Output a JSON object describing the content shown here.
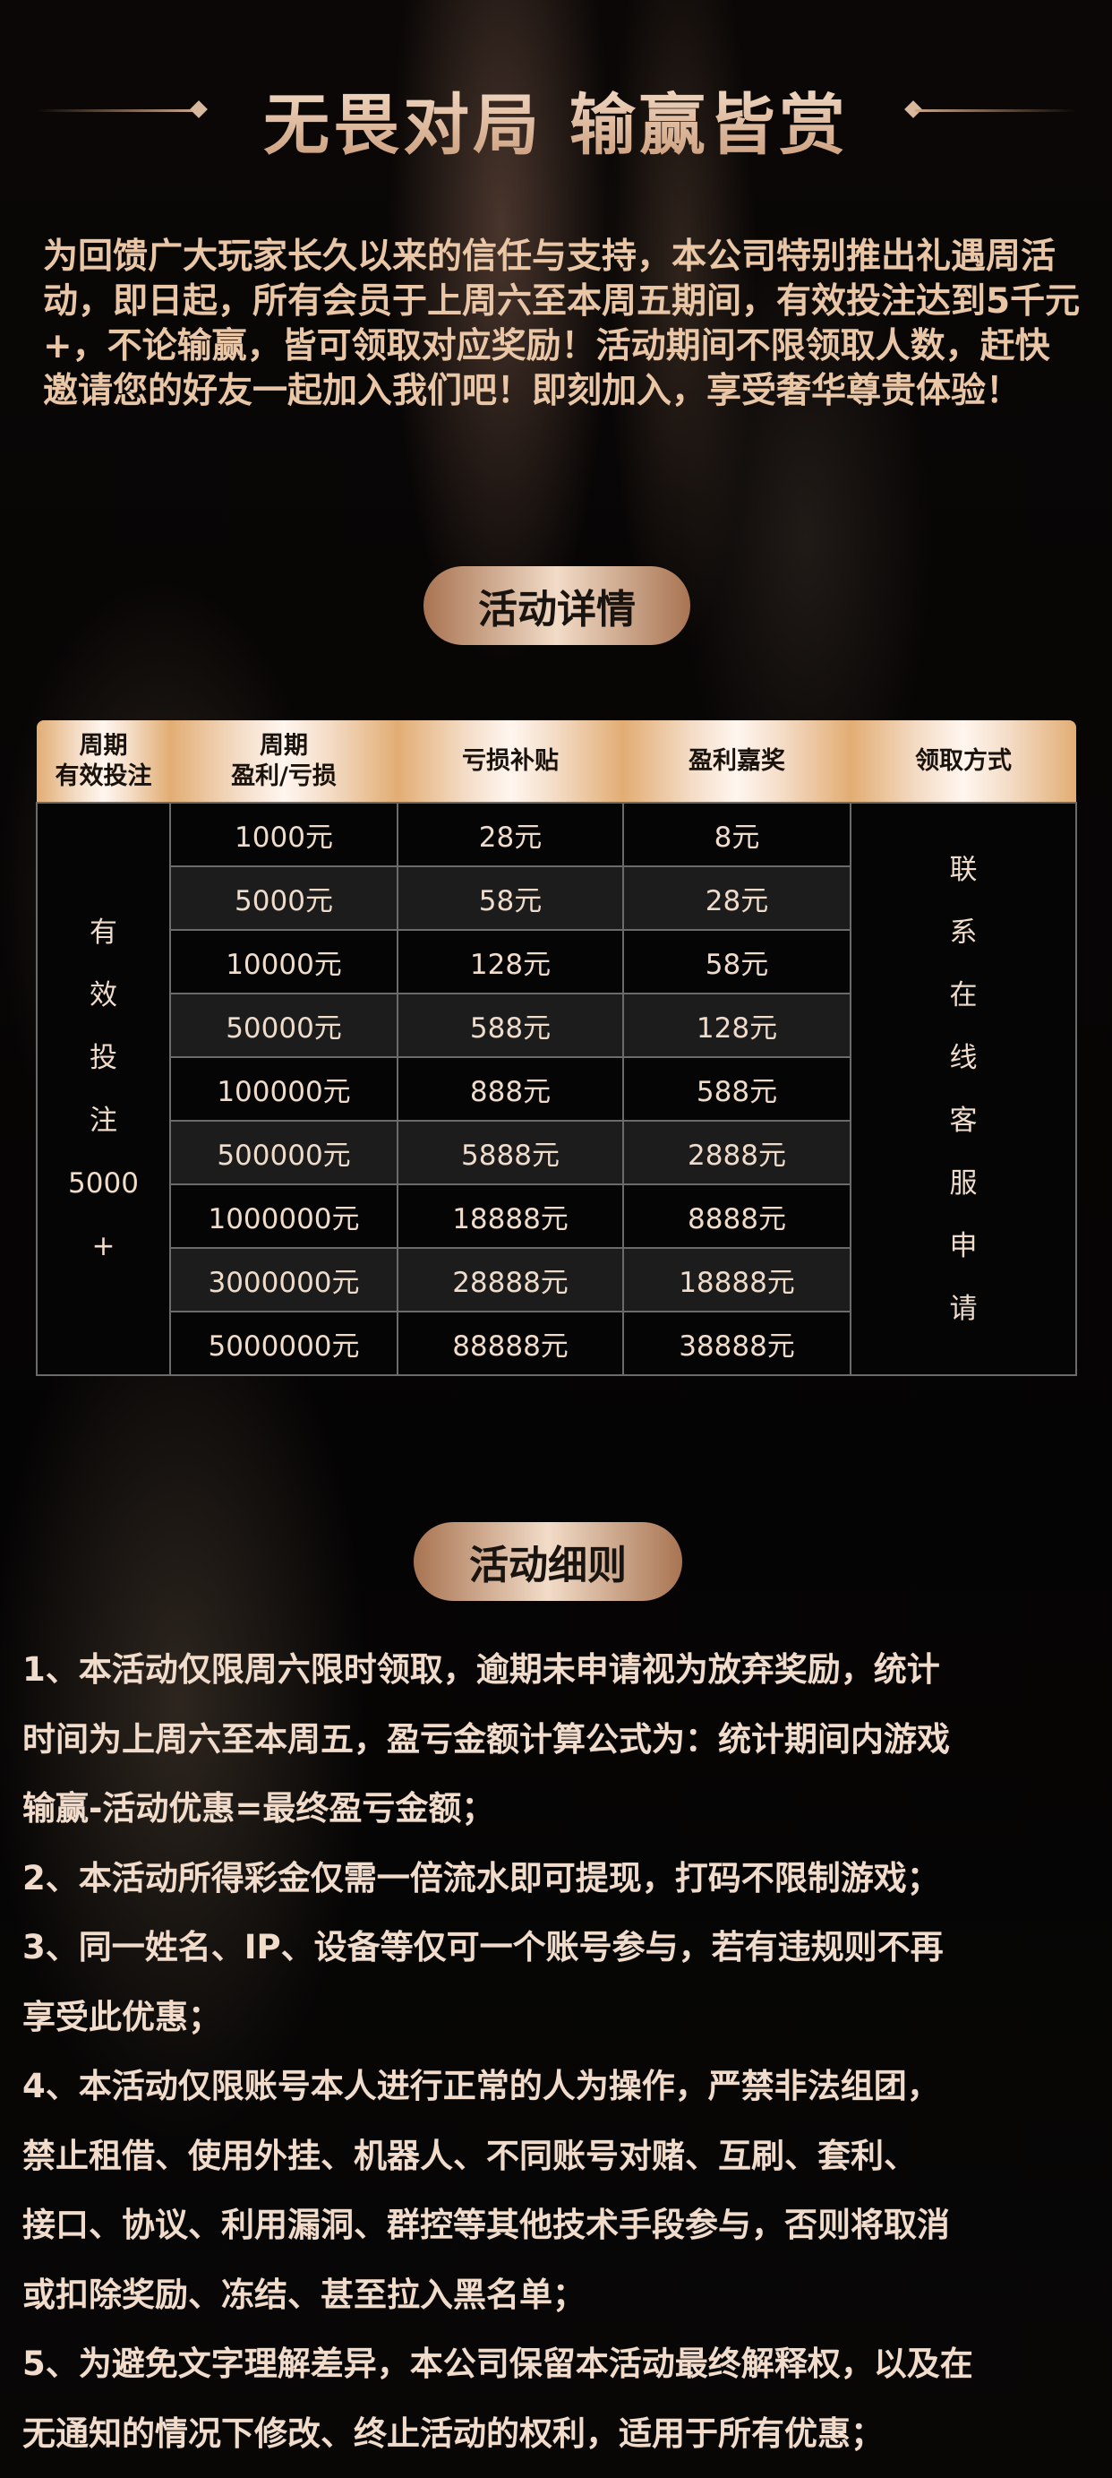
{
  "header": {
    "title": "无畏对局 输赢皆赏"
  },
  "intro": "为回馈广大玩家长久以来的信任与支持，本公司特别推出礼遇周活动，即日起，所有会员于上周六至本周五期间，有效投注达到5千元+，不论输赢，皆可领取对应奖励！活动期间不限领取人数，赶快邀请您的好友一起加入我们吧！即刻加入，享受奢华尊贵体验！",
  "details_label": "活动详情",
  "table": {
    "headers": [
      [
        "周期",
        "有效投注"
      ],
      [
        "周期",
        "盈利/亏损"
      ],
      [
        "亏损补贴"
      ],
      [
        "盈利嘉奖"
      ],
      [
        "领取方式"
      ]
    ],
    "side_left": [
      "有",
      "效",
      "投",
      "注",
      "5000",
      "+"
    ],
    "side_right": [
      "联",
      "系",
      "在",
      "线",
      "客",
      "服",
      "申",
      "请"
    ],
    "rows": [
      [
        "1000元",
        "28元",
        "8元"
      ],
      [
        "5000元",
        "58元",
        "28元"
      ],
      [
        "10000元",
        "128元",
        "58元"
      ],
      [
        "50000元",
        "588元",
        "128元"
      ],
      [
        "100000元",
        "888元",
        "588元"
      ],
      [
        "500000元",
        "5888元",
        "2888元"
      ],
      [
        "1000000元",
        "18888元",
        "8888元"
      ],
      [
        "3000000元",
        "28888元",
        "18888元"
      ],
      [
        "5000000元",
        "88888元",
        "38888元"
      ]
    ]
  },
  "rules_label": "活动细则",
  "rules": [
    [
      "1、本活动仅限周六限时领取，逾期未申请视为放弃奖励，统计",
      "时间为上周六至本周五，盈亏金额计算公式为：统计期间内游戏",
      "输赢-活动优惠=最终盈亏金额；"
    ],
    [
      "2、本活动所得彩金仅需一倍流水即可提现，打码不限制游戏；"
    ],
    [
      "3、同一姓名、IP、设备等仅可一个账号参与，若有违规则不再",
      "享受此优惠；"
    ],
    [
      "4、本活动仅限账号本人进行正常的人为操作，严禁非法组团，",
      "禁止租借、使用外挂、机器人、不同账号对赌、互刷、套利、",
      "接口、协议、利用漏洞、群控等其他技术手段参与，否则将取消",
      "或扣除奖励、冻结、甚至拉入黑名单；"
    ],
    [
      "5、为避免文字理解差异，本公司保留本活动最终解释权，以及在",
      "无通知的情况下修改、终止活动的权利，适用于所有优惠；"
    ]
  ]
}
